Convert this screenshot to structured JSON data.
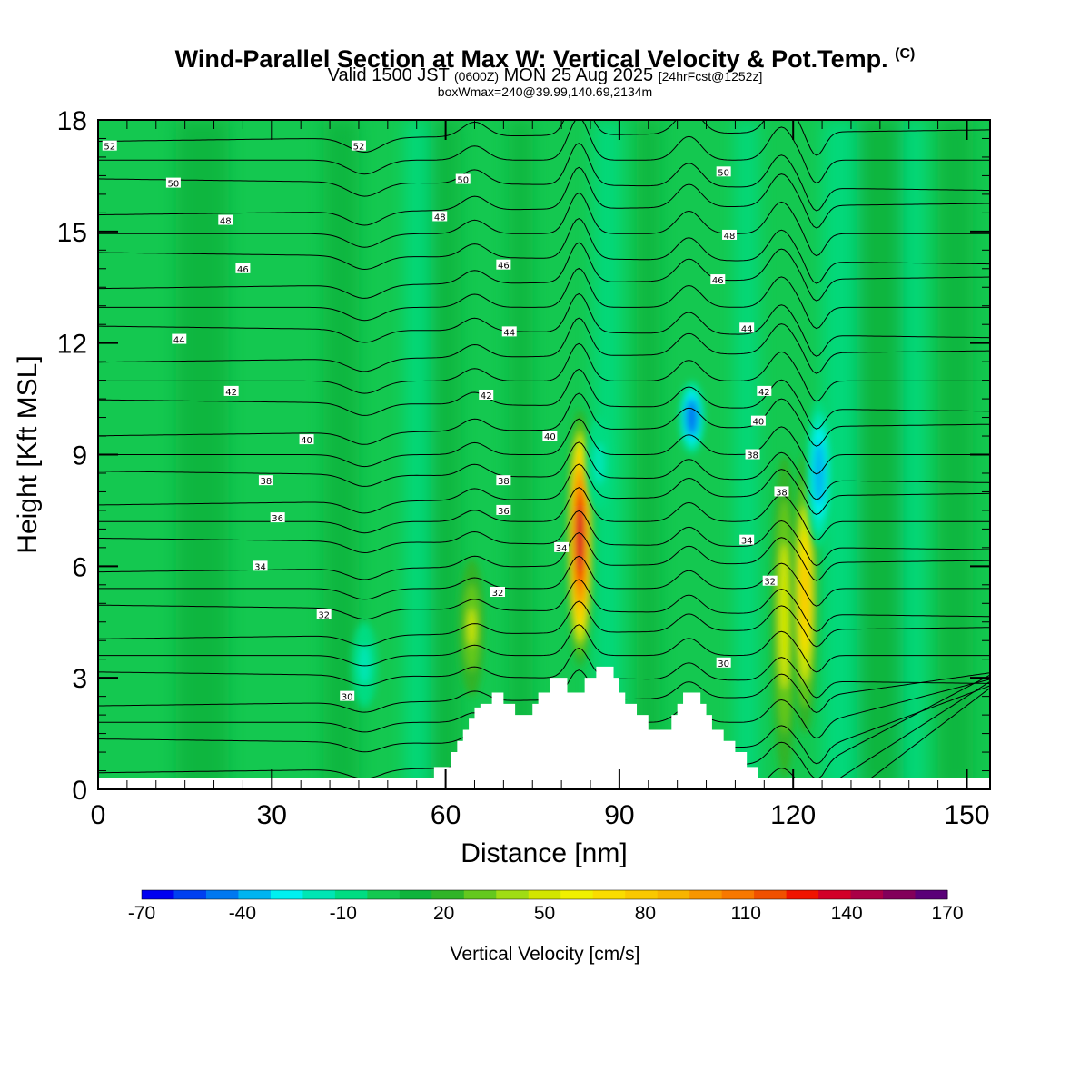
{
  "title": {
    "main": "Wind-Parallel Section at Max W: Vertical Velocity & Pot.Temp.",
    "copyright": "(C)",
    "valid_prefix": "Valid 1500 JST",
    "valid_utc": "(0600Z)",
    "valid_date": "MON 25 Aug 2025",
    "forecast": "[24hrFcst@1252z]",
    "box": "boxWmax=240@39.99,140.69,2134m"
  },
  "colors": {
    "background_green": "#14c850",
    "mid_green": "#10b43c",
    "light_green": "#00dc82",
    "terrain": "#ffffff"
  },
  "chart_data": {
    "type": "heatmap",
    "xlabel": "Distance [nm]",
    "ylabel": "Height [Kft MSL]",
    "xlim": [
      0,
      154
    ],
    "ylim": [
      0,
      18
    ],
    "xticks": [
      "0",
      "30",
      "60",
      "90",
      "120",
      "150"
    ],
    "xtick_values": [
      0,
      30,
      60,
      90,
      120,
      150
    ],
    "yticks": [
      "0",
      "3",
      "6",
      "9",
      "12",
      "15",
      "18"
    ],
    "ytick_values": [
      0,
      3,
      6,
      9,
      12,
      15,
      18
    ],
    "colorbar": {
      "label": "Vertical Velocity [cm/s]",
      "tick_labels": [
        "-70",
        "-40",
        "-10",
        "20",
        "50",
        "80",
        "110",
        "140",
        "170"
      ],
      "tick_values": [
        -70,
        -40,
        -10,
        20,
        50,
        80,
        110,
        140,
        170
      ],
      "min": -70,
      "max": 170,
      "colors": [
        "#0000f0",
        "#0040f0",
        "#0078f0",
        "#00b4f0",
        "#00f0f0",
        "#00e6b4",
        "#00dc82",
        "#14c850",
        "#10b43c",
        "#30b428",
        "#64c81e",
        "#a0dc14",
        "#d2e600",
        "#f0f000",
        "#fadc00",
        "#fac800",
        "#f8b400",
        "#f89600",
        "#f87800",
        "#f05000",
        "#f01400",
        "#d20028",
        "#aa0046",
        "#82005a",
        "#5a0078"
      ]
    },
    "updraft_cores": [
      {
        "x": 64.5,
        "bottom": 2.5,
        "top": 6.2,
        "peak": 50
      },
      {
        "x": 83.2,
        "bottom": 3.3,
        "top": 10.2,
        "peak": 140
      },
      {
        "x": 118.5,
        "bottom": 0.3,
        "top": 9.0,
        "peak": 60
      },
      {
        "x": 122.0,
        "bottom": 1.5,
        "top": 9.0,
        "peak": 80
      }
    ],
    "downdraft_cores": [
      {
        "x": 102.5,
        "bottom": 9.0,
        "top": 11.0,
        "peak": -50
      },
      {
        "x": 124.5,
        "bottom": 6.5,
        "top": 10.5,
        "peak": -40
      },
      {
        "x": 46.0,
        "bottom": 2.2,
        "top": 4.5,
        "peak": -20
      },
      {
        "x": 86.5,
        "bottom": 7.5,
        "top": 10.0,
        "peak": -20
      }
    ],
    "terrain": {
      "x": [
        56,
        58,
        60,
        61,
        62,
        63,
        64,
        65,
        66,
        67,
        68,
        69,
        70,
        72,
        74,
        75,
        76,
        77,
        78,
        80,
        81,
        83,
        84,
        85,
        86,
        88,
        89,
        90,
        91,
        92,
        93,
        94,
        95,
        96,
        98,
        99,
        100,
        101,
        102,
        104,
        105,
        106,
        107,
        108,
        109,
        110,
        111,
        112,
        113,
        114,
        115,
        117,
        119,
        121,
        124,
        126,
        128
      ],
      "y": [
        0.3,
        0.6,
        0.6,
        1.0,
        1.3,
        1.6,
        1.9,
        2.2,
        2.3,
        2.3,
        2.6,
        2.6,
        2.3,
        2.0,
        2.0,
        2.3,
        2.6,
        2.6,
        3.0,
        3.0,
        2.6,
        2.6,
        3.0,
        3.0,
        3.3,
        3.3,
        3.0,
        2.6,
        2.3,
        2.3,
        2.0,
        2.0,
        1.6,
        1.6,
        1.6,
        2.0,
        2.3,
        2.6,
        2.6,
        2.3,
        2.0,
        1.6,
        1.6,
        1.3,
        1.3,
        1.0,
        1.0,
        0.6,
        0.6,
        0.3,
        0.3,
        0.3,
        0.3,
        0.3,
        0.3,
        0.3,
        0.0
      ]
    },
    "theta_contour_levels": [
      30,
      32,
      34,
      36,
      38,
      40,
      42,
      44,
      46,
      48,
      50,
      52
    ],
    "contour_labels": [
      {
        "text": "52",
        "x": 2,
        "y": 17.3
      },
      {
        "text": "52",
        "x": 45,
        "y": 17.3
      },
      {
        "text": "50",
        "x": 13,
        "y": 16.3
      },
      {
        "text": "50",
        "x": 63,
        "y": 16.4
      },
      {
        "text": "50",
        "x": 108,
        "y": 16.6
      },
      {
        "text": "48",
        "x": 22,
        "y": 15.3
      },
      {
        "text": "48",
        "x": 59,
        "y": 15.4
      },
      {
        "text": "48",
        "x": 109,
        "y": 14.9
      },
      {
        "text": "46",
        "x": 25,
        "y": 14.0
      },
      {
        "text": "46",
        "x": 70,
        "y": 14.1
      },
      {
        "text": "46",
        "x": 107,
        "y": 13.7
      },
      {
        "text": "44",
        "x": 14,
        "y": 12.1
      },
      {
        "text": "44",
        "x": 71,
        "y": 12.3
      },
      {
        "text": "44",
        "x": 112,
        "y": 12.4
      },
      {
        "text": "42",
        "x": 23,
        "y": 10.7
      },
      {
        "text": "42",
        "x": 67,
        "y": 10.6
      },
      {
        "text": "42",
        "x": 115,
        "y": 10.7
      },
      {
        "text": "40",
        "x": 36,
        "y": 9.4
      },
      {
        "text": "40",
        "x": 78,
        "y": 9.5
      },
      {
        "text": "40",
        "x": 114,
        "y": 9.9
      },
      {
        "text": "38",
        "x": 29,
        "y": 8.3
      },
      {
        "text": "38",
        "x": 70,
        "y": 8.3
      },
      {
        "text": "38",
        "x": 113,
        "y": 9.0
      },
      {
        "text": "38",
        "x": 118,
        "y": 8.0
      },
      {
        "text": "36",
        "x": 31,
        "y": 7.3
      },
      {
        "text": "36",
        "x": 70,
        "y": 7.5
      },
      {
        "text": "34",
        "x": 28,
        "y": 6.0
      },
      {
        "text": "34",
        "x": 80,
        "y": 6.5
      },
      {
        "text": "34",
        "x": 112,
        "y": 6.7
      },
      {
        "text": "32",
        "x": 39,
        "y": 4.7
      },
      {
        "text": "32",
        "x": 69,
        "y": 5.3
      },
      {
        "text": "32",
        "x": 116,
        "y": 5.6
      },
      {
        "text": "30",
        "x": 43,
        "y": 2.5
      },
      {
        "text": "30",
        "x": 108,
        "y": 3.4
      }
    ]
  }
}
